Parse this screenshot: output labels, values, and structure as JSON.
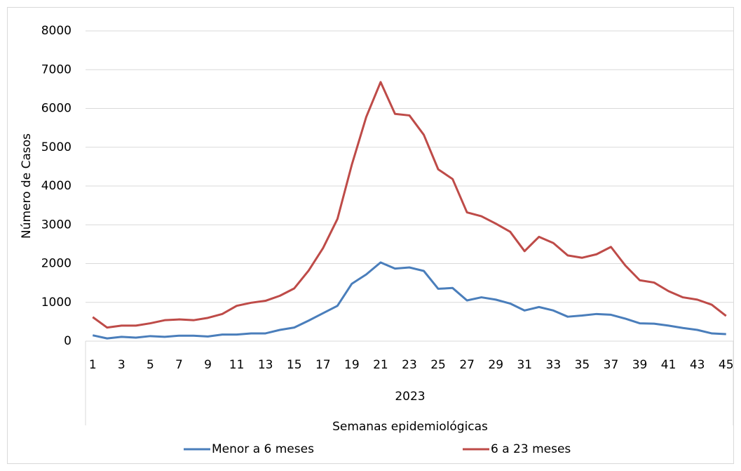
{
  "chart_data": {
    "type": "line",
    "y_label": "Número de Casos",
    "x_label": "Semanas epidemiológicas",
    "x_group_label": "2023",
    "categories": [
      1,
      null,
      3,
      null,
      5,
      null,
      7,
      null,
      9,
      null,
      11,
      null,
      13,
      null,
      15,
      null,
      17,
      null,
      19,
      null,
      21,
      null,
      23,
      null,
      25,
      null,
      27,
      null,
      29,
      null,
      31,
      null,
      33,
      null,
      35,
      null,
      37,
      null,
      39,
      null,
      41,
      null,
      43,
      null,
      45
    ],
    "series": [
      {
        "name": "Menor a 6 meses",
        "color": "#4a7ebb",
        "values": [
          150,
          70,
          110,
          90,
          130,
          110,
          140,
          140,
          120,
          170,
          170,
          200,
          200,
          290,
          350,
          530,
          720,
          910,
          1480,
          1720,
          2030,
          1870,
          1900,
          1810,
          1350,
          1370,
          1050,
          1130,
          1070,
          970,
          790,
          880,
          790,
          630,
          660,
          700,
          680,
          580,
          460,
          450,
          400,
          340,
          290,
          200,
          180
        ]
      },
      {
        "name": "6 a 23 meses",
        "color": "#be4b48",
        "values": [
          620,
          350,
          400,
          400,
          460,
          540,
          560,
          540,
          600,
          700,
          910,
          990,
          1040,
          1170,
          1360,
          1820,
          2400,
          3150,
          4550,
          5780,
          6680,
          5860,
          5820,
          5320,
          4430,
          4180,
          3320,
          3220,
          3030,
          2820,
          2320,
          2690,
          2530,
          2210,
          2150,
          2240,
          2430,
          1950,
          1570,
          1510,
          1290,
          1130,
          1070,
          940,
          650
        ]
      }
    ],
    "ylim": [
      0,
      8000
    ],
    "yticks": [
      0,
      1000,
      2000,
      3000,
      4000,
      5000,
      6000,
      7000,
      8000
    ],
    "grid": true
  }
}
